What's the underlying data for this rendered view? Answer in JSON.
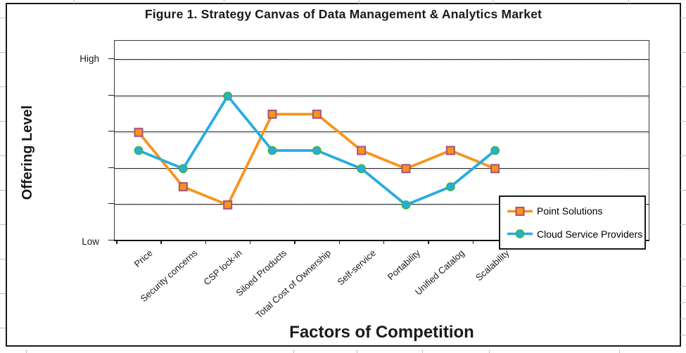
{
  "chart_data": {
    "type": "line",
    "title": "Figure 1. Strategy Canvas of Data Management & Analytics Market",
    "xlabel": "Factors of Competition",
    "ylabel": "Offering Level",
    "y_axis_endpoint_labels": {
      "top": "High",
      "bottom": "Low"
    },
    "ylim": [
      0,
      5.5
    ],
    "gridline_values": [
      1,
      2,
      3,
      4,
      5
    ],
    "grid": "horizontal-only",
    "legend_position": "inside-bottom-right",
    "categories": [
      "Price",
      "Security concerns",
      "CSP lock-in",
      "Siloed Products",
      "Total Cost of Ownership",
      "Self-service",
      "Portability",
      "Unified Catalog",
      "Scalability"
    ],
    "series": [
      {
        "name": "Point Solutions",
        "color": "#F7941E",
        "marker": "square",
        "marker_fill": "#F7941E",
        "marker_border": "#A8527C",
        "values": [
          3,
          1.5,
          1,
          3.5,
          3.5,
          2.5,
          2,
          2.5,
          2
        ]
      },
      {
        "name": "Cloud Service Providers",
        "color": "#29ABE2",
        "marker": "circle",
        "marker_fill": "#29ABE2",
        "marker_border": "#3AB54A",
        "values": [
          2.5,
          2,
          4,
          2.5,
          2.5,
          2,
          1,
          1.5,
          2.5
        ]
      }
    ]
  }
}
